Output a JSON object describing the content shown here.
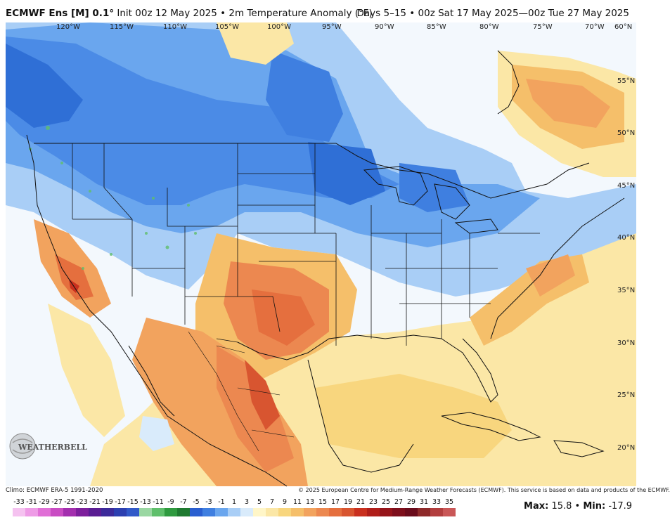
{
  "header": {
    "model": "ECMWF Ens [M] 0.1°",
    "init": "Init 00z 12 May 2025",
    "field": "2m Temperature Anomaly (°F)",
    "sep": "•",
    "period": "Days 5–15 • 00z Sat 17 May 2025—00z Tue 27 May 2025"
  },
  "map": {
    "lon_labels": [
      "120°W",
      "115°W",
      "110°W",
      "105°W",
      "100°W",
      "95°W",
      "90°W",
      "85°W",
      "80°W",
      "75°W",
      "70°W",
      "60°N"
    ],
    "lat_labels": [
      "55°N",
      "50°N",
      "45°N",
      "40°N",
      "35°N",
      "30°N",
      "25°N",
      "20°N"
    ],
    "colors": {
      "deep_blue": "#2f6fd6",
      "blue": "#4b8be6",
      "light_blue": "#8dbdf2",
      "pale_blue": "#c9e1fa",
      "neutral": "#f3f8fd",
      "pale_yellow": "#fbe7a6",
      "yellow": "#f8d67e",
      "orange": "#f2a35e",
      "dark_orange": "#e56f3e",
      "red": "#c9301f",
      "border": "#111111"
    }
  },
  "logo": {
    "text": "WEATHERBELL"
  },
  "footer": {
    "climo": "Climo: ECMWF ERA-5 1991-2020",
    "copyright": "© 2025 European Centre for Medium-Range Weather Forecasts (ECMWF). This service is based on data and products of the ECMWF.",
    "legend_labels": [
      "-33",
      "-31",
      "-29",
      "-27",
      "-25",
      "-23",
      "-21",
      "-19",
      "-17",
      "-15",
      "-13",
      "-11",
      "-9",
      "-7",
      "-5",
      "-3",
      "-1",
      "1",
      "3",
      "5",
      "7",
      "9",
      "11",
      "13",
      "15",
      "17",
      "19",
      "21",
      "23",
      "25",
      "27",
      "29",
      "31",
      "33",
      "35"
    ],
    "legend_colors": [
      "#f5c2f0",
      "#ee9be6",
      "#e06fd6",
      "#c94cc3",
      "#a32fae",
      "#7d1f9c",
      "#5a1d93",
      "#3c2a9a",
      "#2c3fb0",
      "#3159c8",
      "#9ad7a2",
      "#5fbf6b",
      "#2f9a3f",
      "#1f7a30",
      "#2a5fd0",
      "#3f7fe0",
      "#6aa6ee",
      "#a9cef6",
      "#d9ebfb",
      "#fff6c8",
      "#fbe7a6",
      "#f8d67e",
      "#f5bf6a",
      "#f2a35e",
      "#ec8850",
      "#e56f3e",
      "#d85530",
      "#c9301f",
      "#b01e1a",
      "#95141a",
      "#7e0f1c",
      "#6a0c1c",
      "#8e2a2a",
      "#b23e3e",
      "#c95757"
    ],
    "max_label": "Max:",
    "max_value": "15.8",
    "bullet": "•",
    "min_label": "Min:",
    "min_value": "-17.9"
  }
}
